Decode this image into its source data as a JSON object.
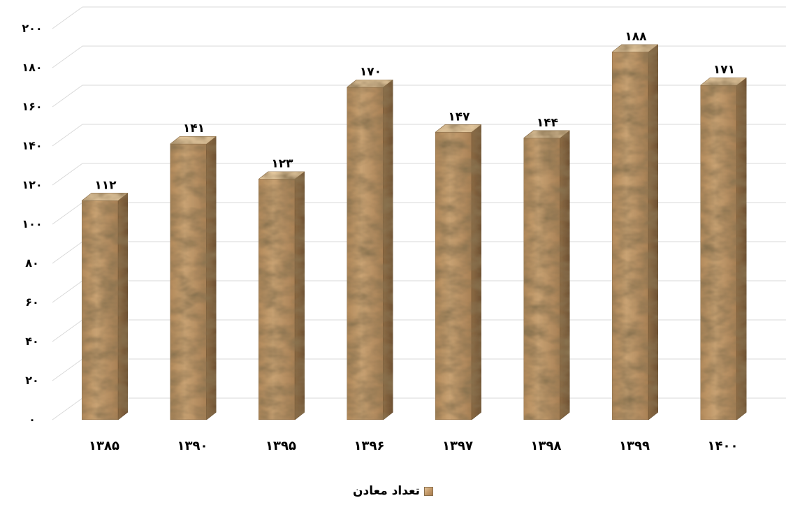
{
  "chart_data": {
    "type": "bar",
    "title": "",
    "xlabel": "",
    "ylabel": "",
    "categories": [
      "۱۳۸۵",
      "۱۳۹۰",
      "۱۳۹۵",
      "۱۳۹۶",
      "۱۳۹۷",
      "۱۳۹۸",
      "۱۳۹۹",
      "۱۴۰۰"
    ],
    "series": [
      {
        "name": "تعداد معادن",
        "values": [
          112,
          141,
          123,
          170,
          147,
          144,
          188,
          171
        ],
        "value_labels": [
          "۱۱۲",
          "۱۴۱",
          "۱۲۳",
          "۱۷۰",
          "۱۴۷",
          "۱۴۴",
          "۱۸۸",
          "۱۷۱"
        ]
      }
    ],
    "ylim": [
      0,
      200
    ],
    "y_ticks": [
      0,
      20,
      40,
      60,
      80,
      100,
      120,
      140,
      160,
      180,
      200
    ],
    "y_tick_labels": [
      "۰",
      "۲۰",
      "۴۰",
      "۶۰",
      "۸۰",
      "۱۰۰",
      "۱۲۰",
      "۱۴۰",
      "۱۶۰",
      "۱۸۰",
      "۲۰۰"
    ],
    "grid": true,
    "style": "3d-column",
    "legend": "bottom-center",
    "colors": {
      "bar_front": "#c8a273",
      "bar_front_dark": "#a88055",
      "bar_side": "#8b6a44",
      "bar_top": "#e2c69c",
      "grid": "#d9d9d9"
    }
  }
}
